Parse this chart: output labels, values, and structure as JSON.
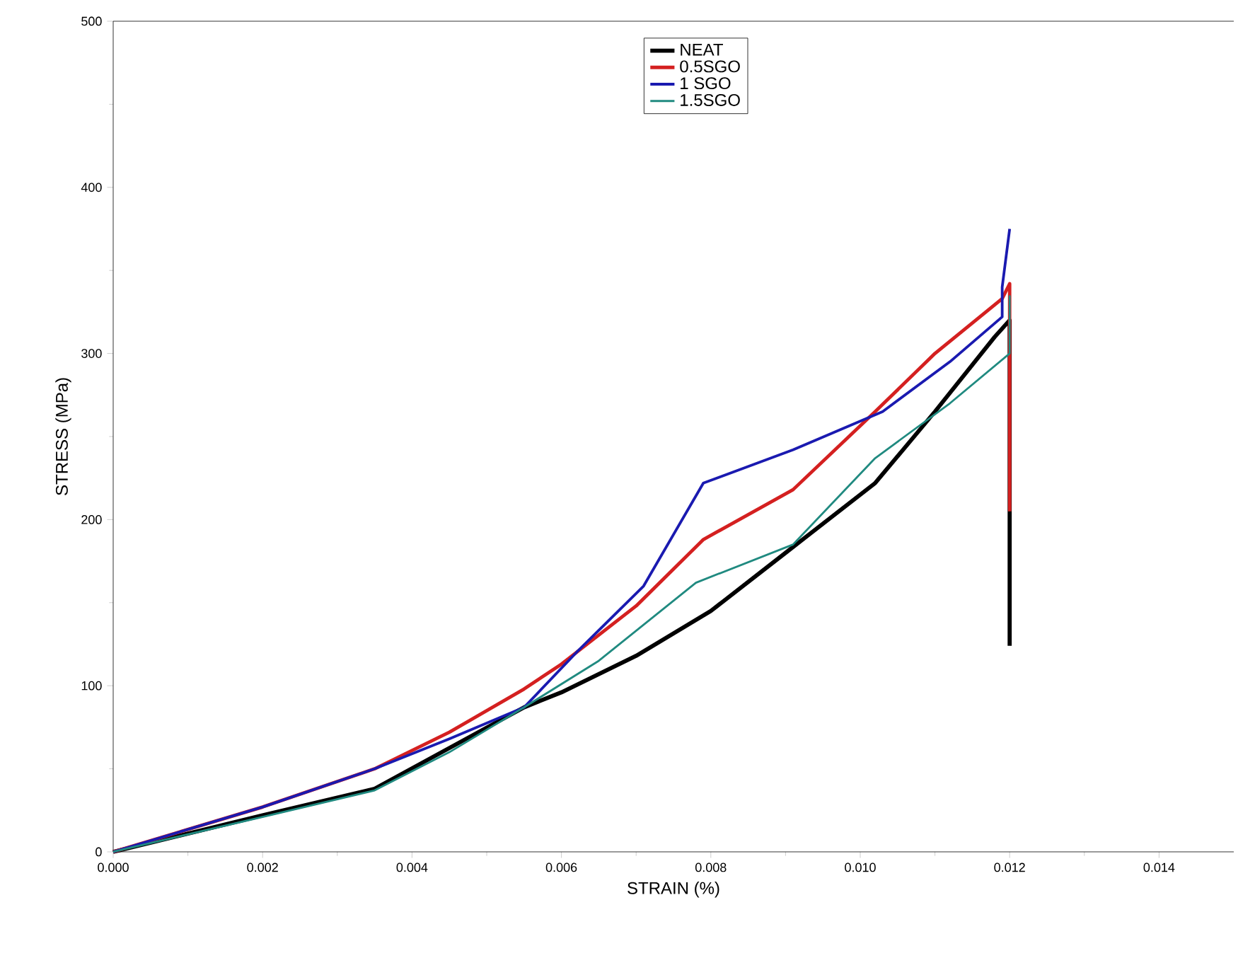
{
  "chart_data": {
    "type": "line",
    "xlabel": "STRAIN (%)",
    "ylabel": "STRESS (MPa)",
    "xlim": [
      0,
      0.015
    ],
    "ylim": [
      0,
      500
    ],
    "xticks": [
      {
        "value": 0,
        "label": "0.000"
      },
      {
        "value": 0.002,
        "label": "0.002"
      },
      {
        "value": 0.004,
        "label": "0.004"
      },
      {
        "value": 0.006,
        "label": "0.006"
      },
      {
        "value": 0.008,
        "label": "0.008"
      },
      {
        "value": 0.01,
        "label": "0.010"
      },
      {
        "value": 0.012,
        "label": "0.012"
      },
      {
        "value": 0.014,
        "label": "0.014"
      }
    ],
    "yticks": [
      0,
      100,
      200,
      300,
      400,
      500
    ],
    "grid": false,
    "legend": "top",
    "marker": "none",
    "line_style": "solid",
    "series": [
      {
        "name": "NEAT",
        "color": "#000000",
        "x": [
          0,
          0.002,
          0.0035,
          0.0055,
          0.006,
          0.007,
          0.008,
          0.009,
          0.0102,
          0.011,
          0.0118,
          0.012,
          0.012
        ],
        "values": [
          0,
          22,
          38,
          87,
          96,
          118,
          145,
          180,
          222,
          265,
          310,
          320,
          124
        ]
      },
      {
        "name": "0.5SGO",
        "color": "#d42020",
        "x": [
          0,
          0.002,
          0.0035,
          0.0045,
          0.0055,
          0.006,
          0.007,
          0.0079,
          0.0091,
          0.0102,
          0.011,
          0.0119,
          0.012,
          0.012
        ],
        "values": [
          0,
          27,
          50,
          72,
          98,
          113,
          148,
          188,
          218,
          265,
          300,
          333,
          342,
          205
        ]
      },
      {
        "name": "1 SGO",
        "color": "#1a1ab0",
        "x": [
          0,
          0.002,
          0.0035,
          0.0045,
          0.0055,
          0.0062,
          0.0071,
          0.0079,
          0.0091,
          0.0103,
          0.0112,
          0.0119,
          0.0119,
          0.012
        ],
        "values": [
          0,
          27,
          50,
          68,
          87,
          120,
          160,
          222,
          242,
          265,
          295,
          322,
          340,
          375
        ]
      },
      {
        "name": "1.5SGO",
        "color": "#208a80",
        "x": [
          0,
          0.002,
          0.0035,
          0.0045,
          0.0055,
          0.0065,
          0.0078,
          0.0091,
          0.0102,
          0.0112,
          0.012,
          0.012
        ],
        "values": [
          0,
          21,
          37,
          60,
          87,
          115,
          162,
          185,
          237,
          270,
          300,
          335
        ]
      }
    ]
  }
}
